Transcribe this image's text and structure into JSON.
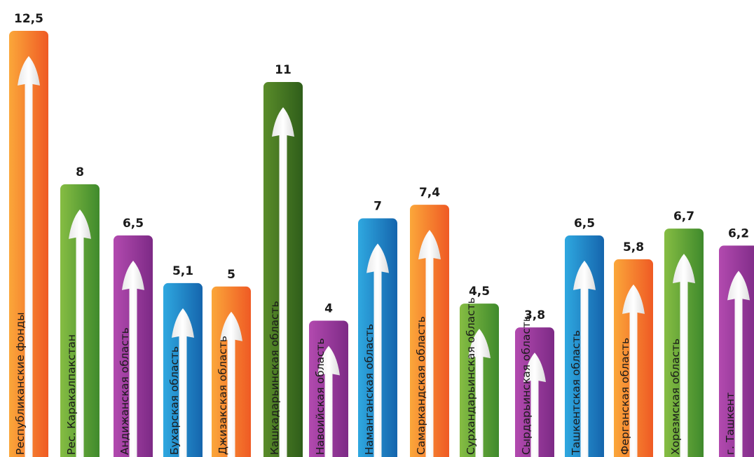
{
  "chart_data": {
    "type": "bar",
    "title": "",
    "xlabel": "",
    "ylabel": "",
    "ylim": [
      0,
      12.5
    ],
    "grid": false,
    "legend": "none",
    "categories": [
      "Республиканские фонды",
      "Рес. Каракалпакстан",
      "Андижанская область",
      "Бухарская область",
      "Джизакская область",
      "Кашкадарьинская область",
      "Навоийская область",
      "Наманганская область",
      "Самаркандская область",
      "Сурхандарьинская область",
      "Сырдарьинская область",
      "Ташкентская область",
      "Ферганская область",
      "Хорезмская область",
      "г. Ташкент"
    ],
    "values": [
      12.5,
      8,
      6.5,
      5.1,
      5,
      11,
      4,
      7,
      7.4,
      4.5,
      3.8,
      6.5,
      5.8,
      6.7,
      6.2
    ],
    "value_labels": [
      "12,5",
      "8",
      "6,5",
      "5,1",
      "5",
      "11",
      "4",
      "7",
      "7,4",
      "4,5",
      "3,8",
      "6,5",
      "5,8",
      "6,7",
      "6,2"
    ],
    "bar_colors": [
      "orange",
      "green",
      "purple",
      "blue",
      "orange",
      "darkgreen",
      "purple",
      "blue",
      "orange",
      "green",
      "purple",
      "blue",
      "orange",
      "green",
      "purple"
    ],
    "palette": {
      "orange": [
        "#fba73a",
        "#ef5a24"
      ],
      "green": [
        "#86bd43",
        "#3f8a2c"
      ],
      "darkgreen": [
        "#5a8c2a",
        "#2f5e1a"
      ],
      "purple": [
        "#b24aaf",
        "#7d2a86"
      ],
      "blue": [
        "#2fa8e0",
        "#1565ad"
      ]
    }
  }
}
